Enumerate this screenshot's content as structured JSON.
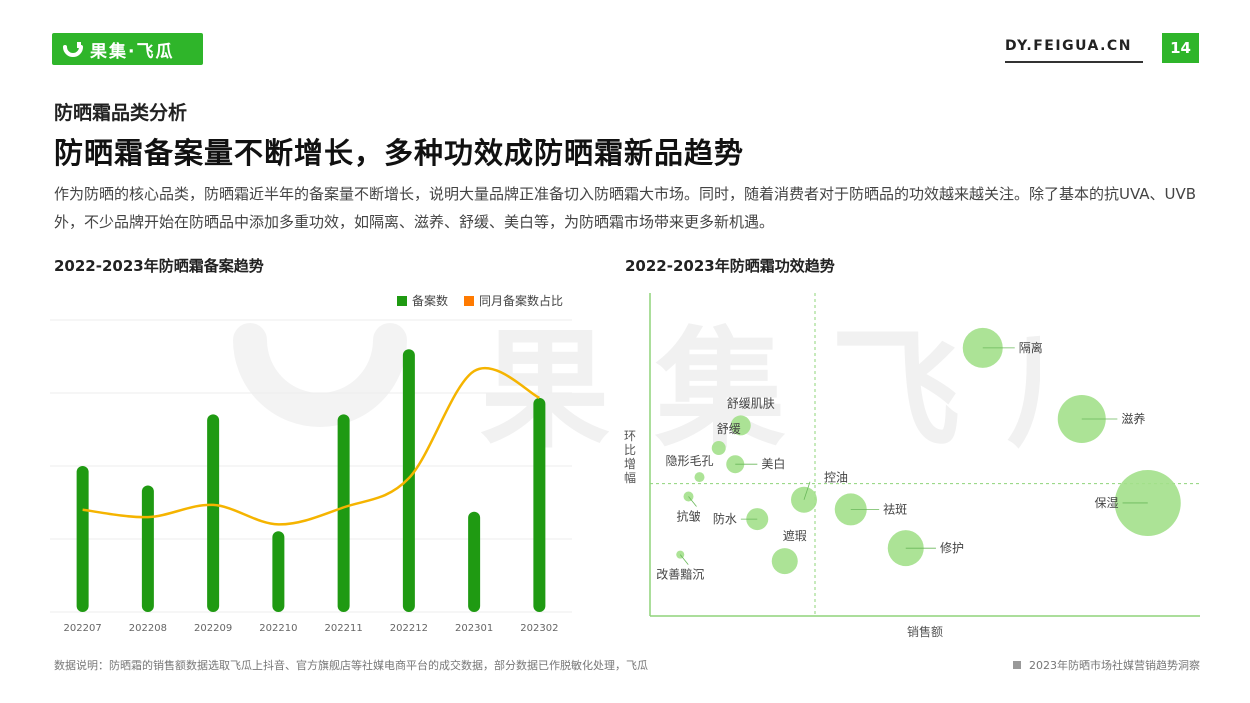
{
  "header": {
    "logo_text": "果集·飞瓜",
    "site": "DY.FEIGUA.CN",
    "page_number": "14"
  },
  "kicker": "防晒霜品类分析",
  "title": "防晒霜备案量不断增长，多种功效成防晒霜新品趋势",
  "description": "作为防晒的核心品类，防晒霜近半年的备案量不断增长，说明大量品牌正准备切入防晒霜大市场。同时，随着消费者对于防晒品的功效越来越关注。除了基本的抗UVA、UVB外，不少品牌开始在防晒品中添加多重功效，如隔离、滋养、舒缓、美白等，为防晒霜市场带来更多新机遇。",
  "watermark_text": "果 集 飞 瓜",
  "footnote": "数据说明：防晒霜的销售额数据选取飞瓜上抖音、官方旗舰店等社媒电商平台的成交数据，部分数据已作脱敏化处理，飞瓜",
  "source": "2023年防晒市场社媒营销趋势洞察",
  "colors": {
    "brand_green": "#2fb52a",
    "bar_green": "#1f9a12",
    "line_orange": "#f5b400",
    "bubble_green": "#a3e08b",
    "legend_orange": "#ff7a00"
  },
  "chart_data": [
    {
      "type": "bar",
      "title": "2022-2023年防晒霜备案趋势",
      "categories": [
        "202207",
        "202208",
        "202209",
        "202210",
        "202211",
        "202212",
        "202301",
        "202302"
      ],
      "series": [
        {
          "name": "备案数",
          "type": "bar",
          "values": [
            150,
            130,
            203,
            83,
            203,
            270,
            103,
            220
          ]
        },
        {
          "name": "同月备案数占比",
          "type": "line",
          "values": [
            0.42,
            0.39,
            0.44,
            0.36,
            0.43,
            0.55,
            0.99,
            0.88
          ]
        }
      ],
      "ylim_bars": [
        0,
        300
      ],
      "ylim_line": [
        0,
        1.2
      ],
      "grid": true,
      "legend": "top-right"
    },
    {
      "type": "scatter",
      "title": "2022-2023年防晒霜功效趋势",
      "xlabel": "销售额",
      "ylabel": "环比增幅",
      "xlim": [
        0,
        100
      ],
      "ylim": [
        0,
        100
      ],
      "reference_lines": {
        "x": 30,
        "y": 41
      },
      "points": [
        {
          "label": "隔离",
          "x": 60.5,
          "y": 83,
          "size": 20
        },
        {
          "label": "滋养",
          "x": 78.5,
          "y": 61,
          "size": 24
        },
        {
          "label": "保湿",
          "x": 90.5,
          "y": 35,
          "size": 33
        },
        {
          "label": "舒缓肌肤",
          "x": 16.5,
          "y": 59,
          "size": 10
        },
        {
          "label": "舒缓",
          "x": 12.5,
          "y": 52,
          "size": 7
        },
        {
          "label": "美白",
          "x": 15.5,
          "y": 47,
          "size": 9
        },
        {
          "label": "隐形毛孔",
          "x": 9,
          "y": 43,
          "size": 5
        },
        {
          "label": "控油",
          "x": 28,
          "y": 36,
          "size": 13
        },
        {
          "label": "抗皱",
          "x": 7,
          "y": 37,
          "size": 5
        },
        {
          "label": "防水",
          "x": 19.5,
          "y": 30,
          "size": 11
        },
        {
          "label": "祛斑",
          "x": 36.5,
          "y": 33,
          "size": 16
        },
        {
          "label": "修护",
          "x": 46.5,
          "y": 21,
          "size": 18
        },
        {
          "label": "遮瑕",
          "x": 24.5,
          "y": 17,
          "size": 13
        },
        {
          "label": "改善黯沉",
          "x": 5.5,
          "y": 19,
          "size": 4
        }
      ]
    }
  ],
  "charts": {
    "left": {
      "legend_bar": "备案数",
      "legend_line": "同月备案数占比"
    },
    "right": {
      "ylabel_chars": [
        "环",
        "比",
        "增",
        "幅"
      ]
    }
  }
}
